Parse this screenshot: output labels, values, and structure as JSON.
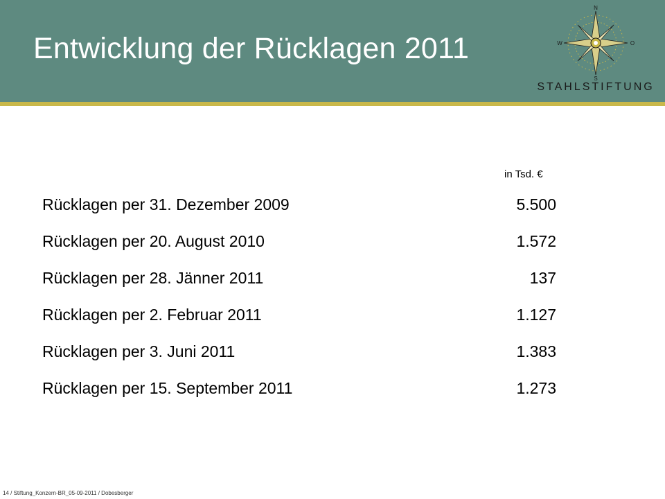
{
  "header": {
    "title": "Entwicklung der Rücklagen 2011",
    "logo": {
      "icon": "compass-rose-icon",
      "compass_n": "N",
      "compass_s": "S",
      "compass_w": "W",
      "compass_o": "O",
      "text": "STAHLSTIFTUNG"
    },
    "colors": {
      "background": "#5e8a80",
      "rule": "#c9b84a"
    }
  },
  "table": {
    "unit_label": "in Tsd. €",
    "rows": [
      {
        "label": "Rücklagen per 31. Dezember 2009",
        "value": "5.500"
      },
      {
        "label": "Rücklagen per 20. August 2010",
        "value": "1.572"
      },
      {
        "label": "Rücklagen per 28. Jänner 2011",
        "value": "137"
      },
      {
        "label": "Rücklagen per 2. Februar 2011",
        "value": "1.127"
      },
      {
        "label": "Rücklagen per 3. Juni 2011",
        "value": "1.383"
      },
      {
        "label": "Rücklagen per 15. September 2011",
        "value": "1.273"
      }
    ]
  },
  "footer": {
    "text": "14 / Stiftung_Konzern-BR_05-09-2011 / Dobesberger"
  }
}
